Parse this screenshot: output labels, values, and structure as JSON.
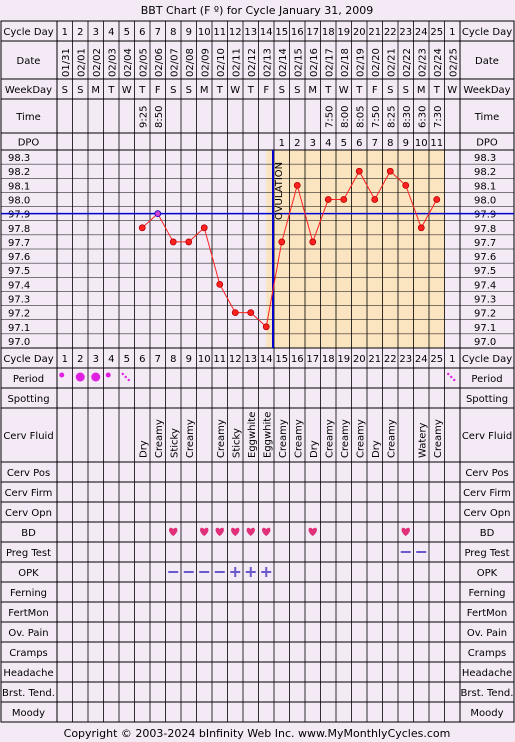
{
  "title": "BBT Chart (F º) for Cycle January 31, 2009",
  "copyright": "Copyright © 2003-2024 bInfinity Web Inc.     www.MyMonthlyCycles.com",
  "row_labels": {
    "cycle_day": "Cycle Day",
    "date": "Date",
    "weekday": "WeekDay",
    "time": "Time",
    "dpo": "DPO",
    "period": "Period",
    "spotting": "Spotting",
    "cerv_fluid": "Cerv Fluid",
    "cerv_pos": "Cerv Pos",
    "cerv_firm": "Cerv Firm",
    "cerv_opn": "Cerv Opn",
    "bd": "BD",
    "preg_test": "Preg Test",
    "opk": "OPK",
    "ferning": "Ferning",
    "fertmon": "FertMon",
    "ov_pain": "Ov. Pain",
    "cramps": "Cramps",
    "headache": "Headache",
    "brst_tend": "Brst. Tend.",
    "moody": "Moody"
  },
  "cycle_days": [
    "1",
    "2",
    "3",
    "4",
    "5",
    "6",
    "7",
    "8",
    "9",
    "10",
    "11",
    "12",
    "13",
    "14",
    "15",
    "16",
    "17",
    "18",
    "19",
    "20",
    "21",
    "22",
    "23",
    "24",
    "25",
    "1"
  ],
  "dates": [
    "01/31",
    "02/01",
    "02/02",
    "02/03",
    "02/04",
    "02/05",
    "02/06",
    "02/07",
    "02/08",
    "02/09",
    "02/10",
    "02/11",
    "02/12",
    "02/13",
    "02/14",
    "02/15",
    "02/16",
    "02/17",
    "02/18",
    "02/19",
    "02/20",
    "02/21",
    "02/22",
    "02/23",
    "02/24",
    "02/25"
  ],
  "weekdays": [
    "S",
    "S",
    "M",
    "T",
    "W",
    "T",
    "F",
    "S",
    "S",
    "M",
    "T",
    "W",
    "T",
    "F",
    "S",
    "S",
    "M",
    "T",
    "W",
    "T",
    "F",
    "S",
    "S",
    "M",
    "T",
    "W"
  ],
  "times": [
    "",
    "",
    "",
    "",
    "",
    "9:25",
    "8:50",
    "",
    "",
    "",
    "",
    "",
    "",
    "",
    "",
    "",
    "",
    "7:50",
    "8:00",
    "8:05",
    "7:50",
    "8:25",
    "8:30",
    "6:30",
    "7:30",
    ""
  ],
  "dpo": [
    "",
    "",
    "",
    "",
    "",
    "",
    "",
    "",
    "",
    "",
    "",
    "",
    "",
    "",
    "1",
    "2",
    "3",
    "4",
    "5",
    "6",
    "7",
    "8",
    "9",
    "10",
    "11",
    ""
  ],
  "ovulation_label": "OVULATION",
  "cerv_fluid": [
    "",
    "",
    "",
    "",
    "",
    "Dry",
    "Creamy",
    "Sticky",
    "Creamy",
    "",
    "Creamy",
    "Sticky",
    "Eggwhite",
    "Eggwhite",
    "Creamy",
    "Creamy",
    "Dry",
    "Creamy",
    "Creamy",
    "Creamy",
    "Dry",
    "Creamy",
    "",
    "Watery",
    "Creamy",
    ""
  ],
  "period": [
    "light",
    "heavy",
    "heavy",
    "light",
    "spotty",
    "",
    "",
    "",
    "",
    "",
    "",
    "",
    "",
    "",
    "",
    "",
    "",
    "",
    "",
    "",
    "",
    "",
    "",
    "",
    "",
    "spotty"
  ],
  "bd": [
    false,
    false,
    false,
    false,
    false,
    false,
    false,
    true,
    false,
    true,
    true,
    true,
    true,
    true,
    false,
    false,
    true,
    false,
    false,
    false,
    false,
    false,
    true,
    false,
    false,
    false
  ],
  "preg_test": [
    "",
    "",
    "",
    "",
    "",
    "",
    "",
    "",
    "",
    "",
    "",
    "",
    "",
    "",
    "",
    "",
    "",
    "",
    "",
    "",
    "",
    "",
    "neg",
    "neg",
    "",
    ""
  ],
  "opk": [
    "",
    "",
    "",
    "",
    "",
    "",
    "",
    "neg",
    "neg",
    "neg",
    "neg",
    "pos",
    "pos",
    "pos",
    "",
    "",
    "",
    "",
    "",
    "",
    "",
    "",
    "",
    "",
    "",
    ""
  ],
  "colors": {
    "background": "#f3eaf6",
    "grid": "#000000",
    "post_ovulation_fill": "#fbe4c0",
    "temp_line": "#ff2020",
    "temp_dot": "#ff2020",
    "coverline": "#0000cc",
    "ovulation_line": "#0000cc",
    "bd_heart": "#e0307a",
    "period_dot": "#e020e0",
    "preg_test": "#6a5acd",
    "opk": "#6a5acd"
  },
  "chart_data": {
    "type": "line",
    "title": "BBT Chart (F º) for Cycle January 31, 2009",
    "x": [
      "1",
      "2",
      "3",
      "4",
      "5",
      "6",
      "7",
      "8",
      "9",
      "10",
      "11",
      "12",
      "13",
      "14",
      "15",
      "16",
      "17",
      "18",
      "19",
      "20",
      "21",
      "22",
      "23",
      "24",
      "25",
      "1"
    ],
    "ylabel": "",
    "y_ticks": [
      "98.3",
      "98.2",
      "98.1",
      "98.0",
      "97.9",
      "97.8",
      "97.7",
      "97.6",
      "97.5",
      "97.4",
      "97.3",
      "97.2",
      "97.1",
      "97.0"
    ],
    "ylim": [
      97.0,
      98.3
    ],
    "coverline": 97.9,
    "ovulation_day": 14,
    "series": [
      {
        "values": [
          null,
          null,
          null,
          null,
          null,
          97.8,
          97.9,
          97.7,
          97.7,
          97.8,
          97.4,
          97.2,
          97.2,
          97.1,
          97.7,
          98.1,
          97.7,
          98.0,
          98.0,
          98.2,
          98.0,
          98.2,
          98.1,
          97.8,
          98.0,
          null
        ]
      }
    ],
    "grid": true
  }
}
